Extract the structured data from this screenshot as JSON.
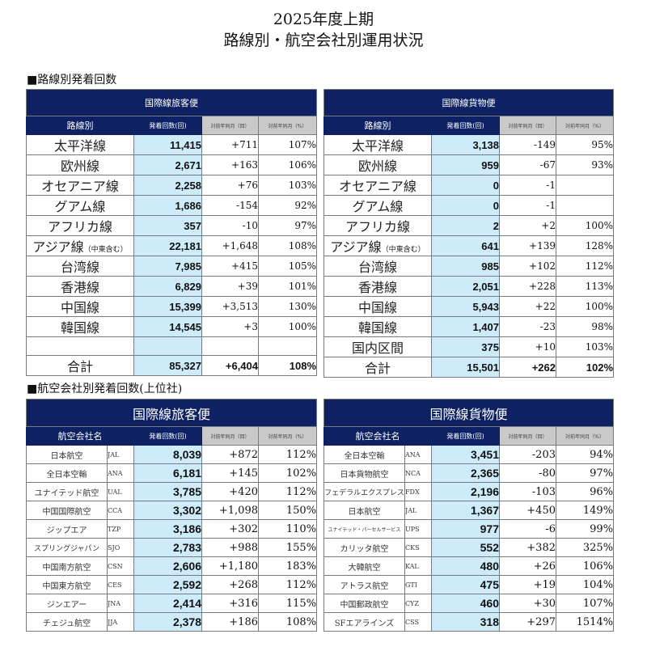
{
  "title": {
    "line1": "2025年度上期",
    "line2": "路線別・航空会社別運用状況"
  },
  "routes_section": {
    "label": "■路線別発着回数",
    "passenger": {
      "caption": "国際線旅客便",
      "headers": [
        "路線別",
        "発着回数(回)",
        "対前年同月（回）",
        "対前年同月（%）"
      ],
      "rows": [
        {
          "name": "太平洋線",
          "sub": "",
          "count": "11,415",
          "diff": "+711",
          "pct": "107%"
        },
        {
          "name": "欧州線",
          "sub": "",
          "count": "2,671",
          "diff": "+163",
          "pct": "106%"
        },
        {
          "name": "オセアニア線",
          "sub": "",
          "count": "2,258",
          "diff": "+76",
          "pct": "103%"
        },
        {
          "name": "グアム線",
          "sub": "",
          "count": "1,686",
          "diff": "-154",
          "pct": "92%"
        },
        {
          "name": "アフリカ線",
          "sub": "",
          "count": "357",
          "diff": "-10",
          "pct": "97%"
        },
        {
          "name": "アジア線",
          "sub": "（中東含む）",
          "count": "22,181",
          "diff": "+1,648",
          "pct": "108%"
        },
        {
          "name": "台湾線",
          "sub": "",
          "count": "7,985",
          "diff": "+415",
          "pct": "105%"
        },
        {
          "name": "香港線",
          "sub": "",
          "count": "6,829",
          "diff": "+39",
          "pct": "101%"
        },
        {
          "name": "中国線",
          "sub": "",
          "count": "15,399",
          "diff": "+3,513",
          "pct": "130%"
        },
        {
          "name": "韓国線",
          "sub": "",
          "count": "14,545",
          "diff": "+3",
          "pct": "100%"
        },
        {
          "name": "",
          "sub": "",
          "count": "",
          "diff": "",
          "pct": ""
        }
      ],
      "total": {
        "name": "合計",
        "count": "85,327",
        "diff": "+6,404",
        "pct": "108%"
      }
    },
    "cargo": {
      "caption": "国際線貨物便",
      "headers": [
        "路線別",
        "発着回数(回)",
        "対前年同月（回）",
        "対前年同月（%）"
      ],
      "rows": [
        {
          "name": "太平洋線",
          "sub": "",
          "count": "3,138",
          "diff": "-149",
          "pct": "95%"
        },
        {
          "name": "欧州線",
          "sub": "",
          "count": "959",
          "diff": "-67",
          "pct": "93%"
        },
        {
          "name": "オセアニア線",
          "sub": "",
          "count": "0",
          "diff": "-1",
          "pct": ""
        },
        {
          "name": "グアム線",
          "sub": "",
          "count": "0",
          "diff": "-1",
          "pct": ""
        },
        {
          "name": "アフリカ線",
          "sub": "",
          "count": "2",
          "diff": "+2",
          "pct": "100%"
        },
        {
          "name": "アジア線",
          "sub": "（中東含む）",
          "count": "641",
          "diff": "+139",
          "pct": "128%"
        },
        {
          "name": "台湾線",
          "sub": "",
          "count": "985",
          "diff": "+102",
          "pct": "112%"
        },
        {
          "name": "香港線",
          "sub": "",
          "count": "2,051",
          "diff": "+228",
          "pct": "113%"
        },
        {
          "name": "中国線",
          "sub": "",
          "count": "5,943",
          "diff": "+22",
          "pct": "100%"
        },
        {
          "name": "韓国線",
          "sub": "",
          "count": "1,407",
          "diff": "-23",
          "pct": "98%"
        },
        {
          "name": "国内区間",
          "sub": "",
          "count": "375",
          "diff": "+10",
          "pct": "103%"
        }
      ],
      "total": {
        "name": "合計",
        "count": "15,501",
        "diff": "+262",
        "pct": "102%"
      }
    }
  },
  "airlines_section": {
    "label": "■航空会社別発着回数(上位社)",
    "passenger": {
      "caption": "国際線旅客便",
      "headers": [
        "航空会社名",
        "発着回数(回)",
        "対前年同月（回）",
        "対前年同月（%）"
      ],
      "rows": [
        {
          "name": "日本航空",
          "code": "JAL",
          "count": "8,039",
          "diff": "+872",
          "pct": "112%"
        },
        {
          "name": "全日本空輸",
          "code": "ANA",
          "count": "6,181",
          "diff": "+145",
          "pct": "102%"
        },
        {
          "name": "ユナイテッド航空",
          "code": "UAL",
          "count": "3,785",
          "diff": "+420",
          "pct": "112%"
        },
        {
          "name": "中国国際航空",
          "code": "CCA",
          "count": "3,302",
          "diff": "+1,098",
          "pct": "150%"
        },
        {
          "name": "ジップエア",
          "code": "TZP",
          "count": "3,186",
          "diff": "+302",
          "pct": "110%"
        },
        {
          "name": "スプリングジャパン",
          "code": "SJO",
          "count": "2,783",
          "diff": "+988",
          "pct": "155%"
        },
        {
          "name": "中国南方航空",
          "code": "CSN",
          "count": "2,606",
          "diff": "+1,180",
          "pct": "183%"
        },
        {
          "name": "中国東方航空",
          "code": "CES",
          "count": "2,592",
          "diff": "+268",
          "pct": "112%"
        },
        {
          "name": "ジンエアー",
          "code": "JNA",
          "count": "2,414",
          "diff": "+316",
          "pct": "115%"
        },
        {
          "name": "チェジュ航空",
          "code": "JJA",
          "count": "2,378",
          "diff": "+186",
          "pct": "108%"
        }
      ]
    },
    "cargo": {
      "caption": "国際線貨物便",
      "headers": [
        "航空会社名",
        "発着回数(回)",
        "対前年同月（回）",
        "対前年同月（%）"
      ],
      "rows": [
        {
          "name": "全日本空輸",
          "code": "ANA",
          "count": "3,451",
          "diff": "-203",
          "pct": "94%"
        },
        {
          "name": "日本貨物航空",
          "code": "NCA",
          "count": "2,365",
          "diff": "-80",
          "pct": "97%"
        },
        {
          "name": "フェデラルエクスプレス",
          "code": "FDX",
          "count": "2,196",
          "diff": "-103",
          "pct": "96%"
        },
        {
          "name": "日本航空",
          "code": "JAL",
          "count": "1,367",
          "diff": "+450",
          "pct": "149%"
        },
        {
          "name": "ユナイテッド・パーセルサービス",
          "code": "UPS",
          "count": "977",
          "diff": "-6",
          "pct": "99%"
        },
        {
          "name": "カリッタ航空",
          "code": "CKS",
          "count": "552",
          "diff": "+382",
          "pct": "325%"
        },
        {
          "name": "大韓航空",
          "code": "KAL",
          "count": "480",
          "diff": "+26",
          "pct": "106%"
        },
        {
          "name": "アトラス航空",
          "code": "GTI",
          "count": "475",
          "diff": "+19",
          "pct": "104%"
        },
        {
          "name": "中国郵政航空",
          "code": "CYZ",
          "count": "460",
          "diff": "+30",
          "pct": "107%"
        },
        {
          "name": "SFエアラインズ",
          "code": "CSS",
          "count": "318",
          "diff": "+297",
          "pct": "1514%"
        }
      ]
    }
  },
  "colors": {
    "navy": "#0d2163",
    "count_bg": "#cdebf8",
    "header_gray": "#c9c9c9"
  }
}
